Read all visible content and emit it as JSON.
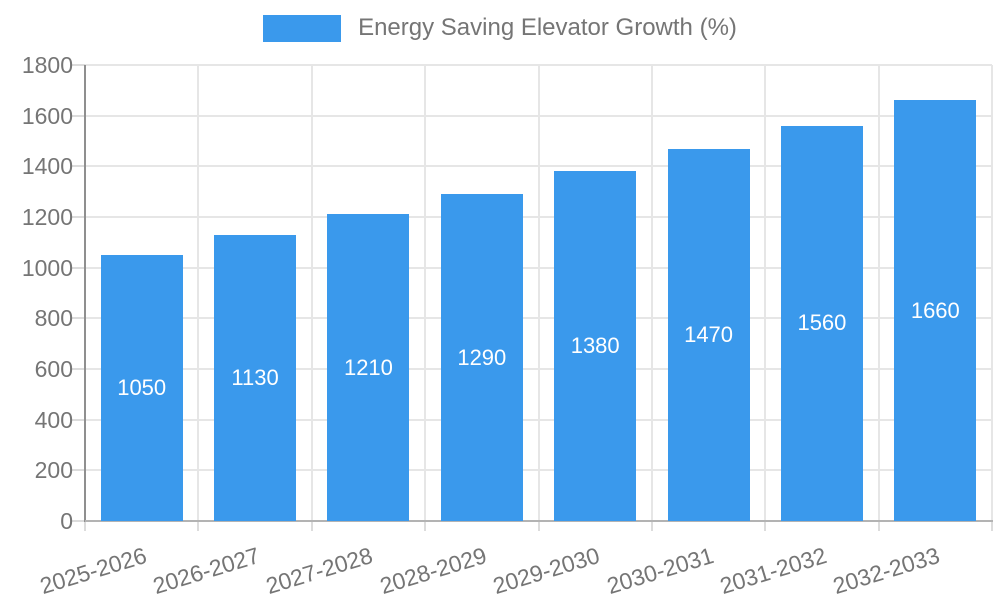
{
  "chart_data": {
    "type": "bar",
    "title": "Energy Saving Elevator Growth (%)",
    "legend": {
      "label": "Energy Saving Elevator Growth (%)",
      "position": "top"
    },
    "categories": [
      "2025-2026",
      "2026-2027",
      "2027-2028",
      "2028-2029",
      "2029-2030",
      "2030-2031",
      "2031-2032",
      "2032-2033"
    ],
    "values": [
      1050,
      1130,
      1210,
      1290,
      1380,
      1470,
      1560,
      1660
    ],
    "value_labels": [
      "1050",
      "1130",
      "1210",
      "1290",
      "1380",
      "1470",
      "1560",
      "1660"
    ],
    "xlabel": "",
    "ylabel": "",
    "ylim": [
      0,
      1800
    ],
    "yticks": [
      0,
      200,
      400,
      600,
      800,
      1000,
      1200,
      1400,
      1600,
      1800
    ],
    "grid": true,
    "bar_color": "#3a99ec",
    "value_label_color": "#ffffff",
    "axis_text_color": "#757575"
  }
}
